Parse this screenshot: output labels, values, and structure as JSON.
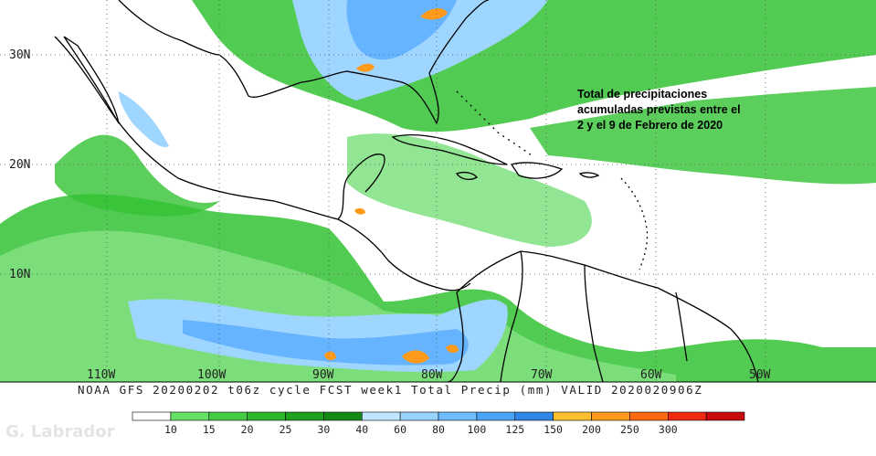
{
  "map": {
    "caption": [
      "Total de precipitaciones",
      "acumuladas previstas entre el",
      "2 y el 9 de Febrero de 2020"
    ],
    "lat_labels": [
      "30N",
      "20N",
      "10N"
    ],
    "lon_labels": [
      "110W",
      "100W",
      "90W",
      "80W",
      "70W",
      "60W",
      "50W"
    ],
    "product_line": "NOAA GFS 20200202 t06z cycle FCST week1 Total Precip (mm)   VALID 2020020906Z",
    "watermark": "G. Labrador",
    "colors": {
      "land_line": "#000000",
      "rain_light": "#7fe07f",
      "rain_green": "#33c233",
      "rain_dark": "#1b9e2b",
      "rain_pale_blue": "#9fd6ff",
      "rain_blue": "#66b3ff",
      "rain_orange": "#ff9a1a"
    }
  },
  "legend": {
    "unit": "mm",
    "thresholds": [
      "10",
      "15",
      "20",
      "25",
      "30",
      "40",
      "60",
      "80",
      "100",
      "125",
      "150",
      "200",
      "250",
      "300"
    ],
    "colors": [
      "#ffffff",
      "#66e066",
      "#44cc44",
      "#2db82d",
      "#1fa01f",
      "#148a14",
      "#bfe7ff",
      "#99d4ff",
      "#6fbcff",
      "#4aa3f5",
      "#2f86e6",
      "#ffc030",
      "#ff9a1a",
      "#ff6a10",
      "#ee2a10",
      "#c80a0a"
    ]
  }
}
